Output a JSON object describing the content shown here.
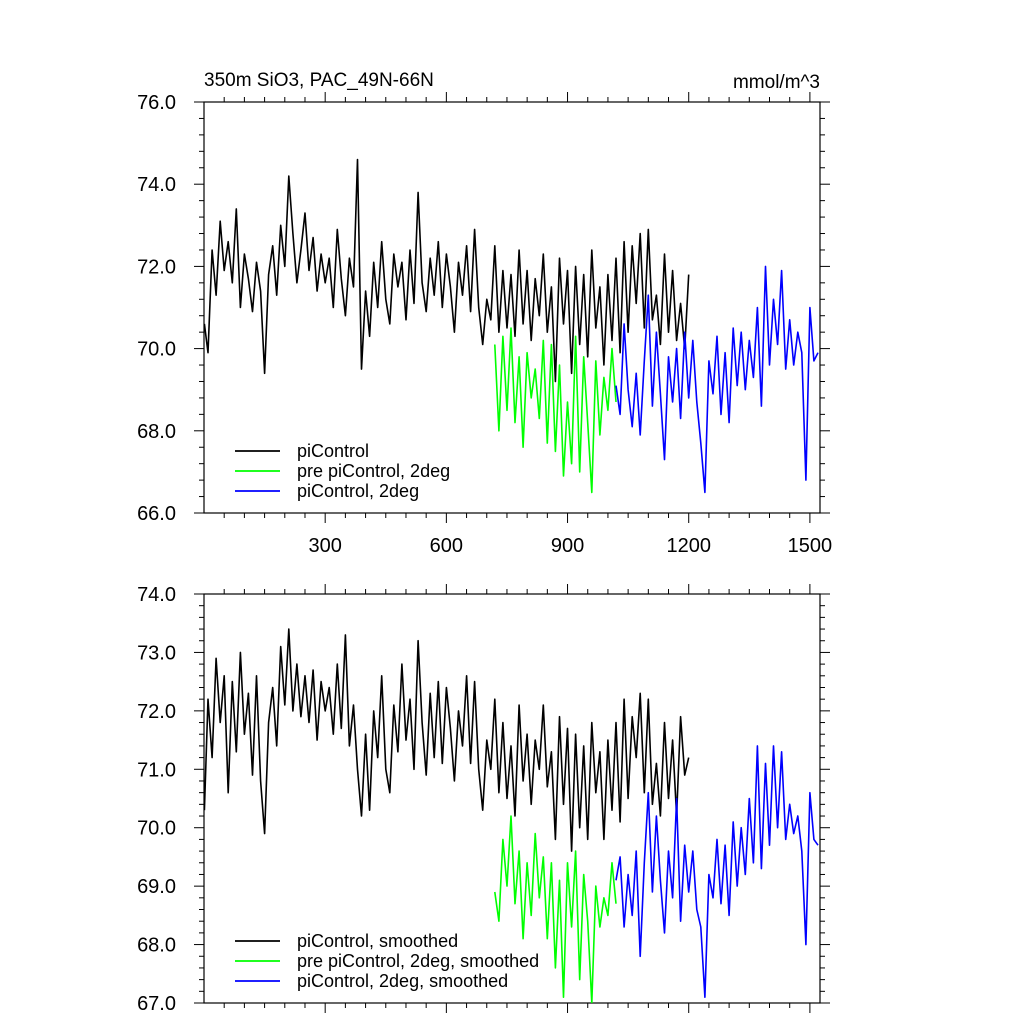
{
  "chart_data": [
    {
      "type": "line",
      "title": "350m SiO3, PAC_49N-66N",
      "units": "mmol/m^3",
      "xlim": [
        0,
        1525
      ],
      "ylim": [
        66.0,
        76.0
      ],
      "xticks": [
        300,
        600,
        900,
        1200,
        1500
      ],
      "xtick_labels": [
        "300",
        "600",
        "900",
        "1200",
        "1500"
      ],
      "yticks": [
        66,
        68,
        70,
        72,
        74,
        76
      ],
      "ytick_labels": [
        "66.0",
        "68.0",
        "70.0",
        "72.0",
        "74.0",
        "76.0"
      ],
      "legend_position": "bottom-left",
      "series": [
        {
          "name": "piControl",
          "color": "#000000",
          "x": [
            1,
            10,
            20,
            30,
            40,
            50,
            60,
            70,
            80,
            90,
            100,
            110,
            120,
            130,
            140,
            150,
            160,
            170,
            180,
            190,
            200,
            210,
            220,
            230,
            240,
            250,
            260,
            270,
            280,
            290,
            300,
            310,
            320,
            330,
            340,
            350,
            360,
            370,
            380,
            390,
            400,
            410,
            420,
            430,
            440,
            450,
            460,
            470,
            480,
            490,
            500,
            510,
            520,
            530,
            540,
            550,
            560,
            570,
            580,
            590,
            600,
            610,
            620,
            630,
            640,
            650,
            660,
            670,
            680,
            690,
            700,
            710,
            720,
            730,
            740,
            750,
            760,
            770,
            780,
            790,
            800,
            810,
            820,
            830,
            840,
            850,
            860,
            870,
            880,
            890,
            900,
            910,
            920,
            930,
            940,
            950,
            960,
            970,
            980,
            990,
            1000,
            1010,
            1020,
            1030,
            1040,
            1050,
            1060,
            1070,
            1080,
            1090,
            1100,
            1110,
            1120,
            1130,
            1140,
            1150,
            1160,
            1170,
            1180,
            1190,
            1200
          ],
          "y": [
            70.6,
            69.9,
            72.4,
            71.3,
            73.1,
            71.9,
            72.6,
            71.6,
            73.4,
            71.0,
            72.3,
            71.7,
            70.9,
            72.1,
            71.4,
            69.4,
            71.8,
            72.5,
            71.3,
            73.0,
            72.0,
            74.2,
            72.8,
            71.6,
            72.4,
            73.3,
            71.9,
            72.7,
            71.4,
            72.3,
            71.6,
            72.2,
            71.0,
            72.9,
            71.7,
            70.8,
            72.2,
            71.5,
            74.6,
            69.5,
            71.4,
            70.3,
            72.1,
            71.0,
            72.6,
            71.2,
            70.6,
            72.3,
            71.5,
            72.1,
            70.7,
            72.4,
            71.1,
            73.8,
            71.6,
            70.9,
            72.2,
            71.3,
            72.6,
            71.0,
            72.3,
            71.5,
            70.4,
            72.1,
            71.3,
            72.5,
            70.9,
            72.9,
            71.0,
            70.1,
            71.2,
            70.7,
            72.5,
            70.4,
            71.9,
            70.5,
            71.8,
            70.3,
            72.4,
            70.6,
            71.9,
            70.2,
            71.7,
            70.8,
            72.3,
            70.4,
            71.5,
            69.2,
            72.2,
            70.6,
            71.9,
            69.4,
            72.0,
            70.1,
            71.8,
            69.8,
            72.4,
            70.5,
            71.5,
            69.6,
            71.8,
            70.2,
            72.2,
            69.9,
            72.6,
            70.4,
            72.5,
            71.1,
            72.8,
            70.5,
            72.9,
            70.7,
            71.3,
            70.1,
            72.3,
            70.4,
            71.9,
            70.2,
            71.1,
            70.0,
            71.8
          ]
        },
        {
          "name": "pre piControl, 2deg",
          "color": "#00ff00",
          "x": [
            720,
            730,
            740,
            750,
            760,
            770,
            780,
            790,
            800,
            810,
            820,
            830,
            840,
            850,
            860,
            870,
            880,
            890,
            900,
            910,
            920,
            930,
            940,
            950,
            960,
            970,
            980,
            990,
            1000,
            1010,
            1020
          ],
          "y": [
            70.1,
            68.0,
            70.3,
            68.5,
            70.5,
            68.2,
            69.8,
            67.6,
            69.9,
            68.8,
            69.5,
            68.3,
            70.2,
            67.7,
            70.1,
            67.5,
            69.6,
            66.9,
            68.7,
            67.2,
            70.3,
            67.0,
            69.8,
            68.2,
            66.5,
            69.7,
            67.9,
            69.3,
            68.5,
            70.0,
            68.7
          ]
        },
        {
          "name": "piControl, 2deg",
          "color": "#0000ff",
          "x": [
            1020,
            1030,
            1040,
            1050,
            1060,
            1070,
            1080,
            1090,
            1100,
            1110,
            1120,
            1130,
            1140,
            1150,
            1160,
            1170,
            1180,
            1190,
            1200,
            1210,
            1220,
            1230,
            1240,
            1250,
            1260,
            1270,
            1280,
            1290,
            1300,
            1310,
            1320,
            1330,
            1340,
            1350,
            1360,
            1370,
            1380,
            1390,
            1400,
            1410,
            1420,
            1430,
            1440,
            1450,
            1460,
            1470,
            1480,
            1490,
            1500,
            1510,
            1520
          ],
          "y": [
            69.1,
            68.4,
            70.6,
            69.0,
            68.1,
            69.4,
            67.9,
            69.7,
            71.3,
            68.6,
            70.4,
            68.9,
            67.3,
            69.8,
            68.7,
            70.0,
            68.3,
            70.4,
            68.8,
            70.2,
            68.7,
            67.7,
            66.5,
            69.7,
            68.9,
            70.3,
            68.4,
            69.9,
            68.2,
            70.5,
            69.1,
            70.4,
            69.0,
            70.2,
            69.3,
            71.0,
            68.6,
            72.0,
            69.6,
            71.2,
            70.1,
            71.9,
            69.5,
            70.7,
            69.6,
            70.4,
            69.9,
            66.8,
            71.0,
            69.7,
            69.9
          ]
        }
      ]
    },
    {
      "type": "line",
      "title": "",
      "xlim": [
        0,
        1525
      ],
      "ylim": [
        67.0,
        74.0
      ],
      "yticks": [
        67,
        68,
        69,
        70,
        71,
        72,
        73,
        74
      ],
      "ytick_labels": [
        "67.0",
        "68.0",
        "69.0",
        "70.0",
        "71.0",
        "72.0",
        "73.0",
        "74.0"
      ],
      "legend_position": "bottom-left",
      "series": [
        {
          "name": "piControl, smoothed",
          "color": "#000000",
          "x": [
            1,
            10,
            20,
            30,
            40,
            50,
            60,
            70,
            80,
            90,
            100,
            110,
            120,
            130,
            140,
            150,
            160,
            170,
            180,
            190,
            200,
            210,
            220,
            230,
            240,
            250,
            260,
            270,
            280,
            290,
            300,
            310,
            320,
            330,
            340,
            350,
            360,
            370,
            380,
            390,
            400,
            410,
            420,
            430,
            440,
            450,
            460,
            470,
            480,
            490,
            500,
            510,
            520,
            530,
            540,
            550,
            560,
            570,
            580,
            590,
            600,
            610,
            620,
            630,
            640,
            650,
            660,
            670,
            680,
            690,
            700,
            710,
            720,
            730,
            740,
            750,
            760,
            770,
            780,
            790,
            800,
            810,
            820,
            830,
            840,
            850,
            860,
            870,
            880,
            890,
            900,
            910,
            920,
            930,
            940,
            950,
            960,
            970,
            980,
            990,
            1000,
            1010,
            1020,
            1030,
            1040,
            1050,
            1060,
            1070,
            1080,
            1090,
            1100,
            1110,
            1120,
            1130,
            1140,
            1150,
            1160,
            1170,
            1180,
            1190,
            1200
          ],
          "y": [
            70.3,
            72.2,
            71.2,
            72.9,
            71.8,
            72.6,
            70.6,
            72.5,
            71.3,
            73.0,
            71.6,
            72.3,
            70.9,
            72.6,
            70.8,
            69.9,
            71.8,
            72.4,
            71.4,
            73.1,
            72.1,
            73.4,
            72.0,
            72.8,
            71.9,
            72.6,
            71.8,
            72.7,
            71.5,
            72.5,
            72.0,
            72.4,
            71.6,
            72.8,
            71.7,
            73.3,
            71.4,
            72.1,
            71.0,
            70.2,
            71.6,
            70.3,
            72.0,
            71.2,
            72.6,
            71.0,
            70.6,
            72.1,
            71.3,
            72.8,
            71.5,
            72.2,
            71.0,
            73.2,
            71.8,
            70.9,
            72.3,
            71.2,
            72.5,
            71.1,
            72.4,
            71.7,
            70.8,
            72.0,
            71.4,
            72.6,
            71.1,
            72.5,
            71.0,
            70.3,
            71.5,
            71.0,
            72.2,
            70.6,
            71.8,
            70.5,
            71.4,
            70.2,
            72.1,
            70.8,
            71.6,
            70.4,
            71.5,
            71.0,
            72.1,
            70.7,
            71.3,
            69.8,
            71.9,
            70.4,
            71.7,
            69.6,
            71.6,
            70.0,
            71.4,
            69.8,
            71.8,
            70.6,
            71.3,
            69.8,
            71.5,
            70.3,
            71.8,
            70.1,
            72.2,
            70.5,
            71.9,
            71.2,
            72.3,
            70.6,
            72.2,
            70.4,
            71.1,
            70.2,
            71.8,
            70.5,
            71.5,
            70.2,
            71.9,
            70.9,
            71.2
          ]
        },
        {
          "name": "pre piControl, 2deg, smoothed",
          "color": "#00ff00",
          "x": [
            720,
            730,
            740,
            750,
            760,
            770,
            780,
            790,
            800,
            810,
            820,
            830,
            840,
            850,
            860,
            870,
            880,
            890,
            900,
            910,
            920,
            930,
            940,
            950,
            960,
            970,
            980,
            990,
            1000,
            1010,
            1020
          ],
          "y": [
            68.9,
            68.4,
            69.8,
            69.0,
            70.2,
            68.7,
            69.6,
            68.1,
            69.4,
            68.5,
            69.9,
            68.8,
            69.5,
            68.1,
            69.4,
            67.6,
            69.1,
            67.1,
            69.4,
            68.3,
            69.6,
            67.4,
            69.2,
            68.4,
            67.0,
            69.0,
            68.3,
            68.8,
            68.5,
            69.4,
            68.7
          ]
        },
        {
          "name": "piControl, 2deg, smoothed",
          "color": "#0000ff",
          "x": [
            1020,
            1030,
            1040,
            1050,
            1060,
            1070,
            1080,
            1090,
            1100,
            1110,
            1120,
            1130,
            1140,
            1150,
            1160,
            1170,
            1180,
            1190,
            1200,
            1210,
            1220,
            1230,
            1240,
            1250,
            1260,
            1270,
            1280,
            1290,
            1300,
            1310,
            1320,
            1330,
            1340,
            1350,
            1360,
            1370,
            1380,
            1390,
            1400,
            1410,
            1420,
            1430,
            1440,
            1450,
            1460,
            1470,
            1480,
            1490,
            1500,
            1510,
            1520
          ],
          "y": [
            69.1,
            69.5,
            68.3,
            69.2,
            68.5,
            69.6,
            67.8,
            69.4,
            70.6,
            68.9,
            70.2,
            69.1,
            68.2,
            69.6,
            68.8,
            70.5,
            68.4,
            69.7,
            68.9,
            69.6,
            68.6,
            68.3,
            67.1,
            69.2,
            68.8,
            69.8,
            68.7,
            69.7,
            68.5,
            70.1,
            69.0,
            70.0,
            69.2,
            70.5,
            69.4,
            71.4,
            69.3,
            71.1,
            69.7,
            71.4,
            70.0,
            71.3,
            69.8,
            70.4,
            69.9,
            70.2,
            69.6,
            68.0,
            70.6,
            69.8,
            69.7
          ]
        }
      ]
    }
  ]
}
